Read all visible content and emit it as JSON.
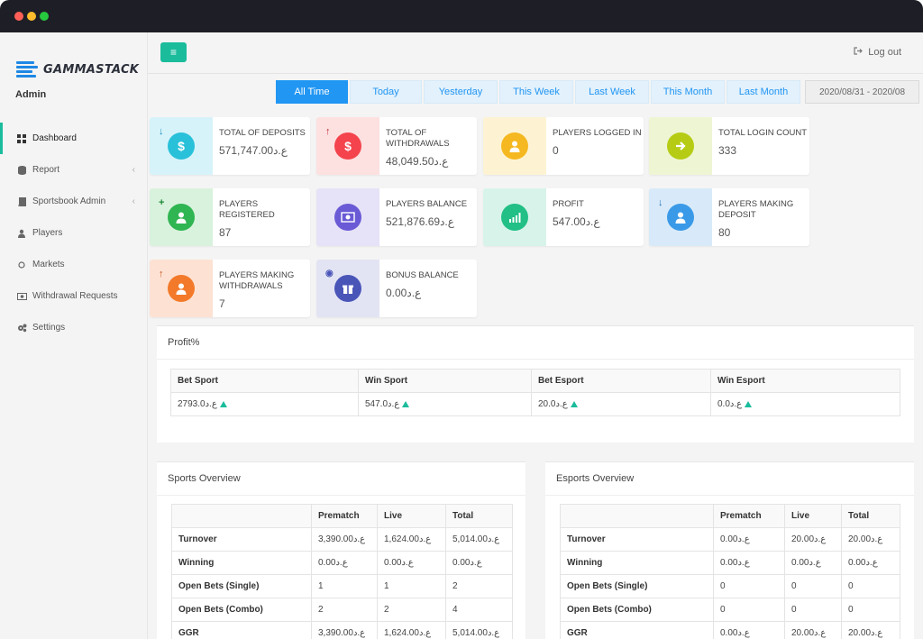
{
  "app": {
    "logo_text": "GAMMASTACK",
    "role": "Admin"
  },
  "sidebar": {
    "items": [
      {
        "label": "Dashboard",
        "icon": "grid-icon",
        "active": true,
        "has_chevron": false
      },
      {
        "label": "Report",
        "icon": "database-icon",
        "active": false,
        "has_chevron": true
      },
      {
        "label": "Sportsbook Admin",
        "icon": "book-icon",
        "active": false,
        "has_chevron": true
      },
      {
        "label": "Players",
        "icon": "users-icon",
        "active": false,
        "has_chevron": false
      },
      {
        "label": "Markets",
        "icon": "circle-icon",
        "active": false,
        "has_chevron": false
      },
      {
        "label": "Withdrawal Requests",
        "icon": "money-icon",
        "active": false,
        "has_chevron": false
      },
      {
        "label": "Settings",
        "icon": "cogs-icon",
        "active": false,
        "has_chevron": false
      }
    ]
  },
  "header": {
    "logout_label": "Log out"
  },
  "filters": {
    "tabs": [
      "All Time",
      "Today",
      "Yesterday",
      "This Week",
      "Last Week",
      "This Month",
      "Last Month"
    ],
    "active": "All Time",
    "date_range": "2020/08/31 - 2020/08"
  },
  "stats": [
    {
      "label": "TOTAL OF DEPOSITS",
      "value": "571,747.00ع.د",
      "icon": "dollar-deposit-icon"
    },
    {
      "label": "TOTAL OF WITHDRAWALS",
      "value": "48,049.50ع.د",
      "icon": "dollar-withdraw-icon"
    },
    {
      "label": "PLAYERS LOGGED IN",
      "value": "0",
      "icon": "user-icon"
    },
    {
      "label": "TOTAL LOGIN COUNT",
      "value": "333",
      "icon": "arrow-right-icon"
    },
    {
      "label": "PLAYERS REGISTERED",
      "value": "87",
      "icon": "user-add-icon"
    },
    {
      "label": "PLAYERS BALANCE",
      "value": "521,876.69ع.د",
      "icon": "money-icon"
    },
    {
      "label": "PROFIT",
      "value": "547.00ع.د",
      "icon": "bar-chart-icon"
    },
    {
      "label": "PLAYERS MAKING DEPOSIT",
      "value": "80",
      "icon": "user-deposit-icon"
    },
    {
      "label": "PLAYERS MAKING WITHDRAWALS",
      "value": "7",
      "icon": "user-withdraw-icon"
    },
    {
      "label": "BONUS BALANCE",
      "value": "0.00ع.د",
      "icon": "gift-icon"
    }
  ],
  "profit": {
    "title": "Profit%",
    "headers": [
      "Bet Sport",
      "Win Sport",
      "Bet Esport",
      "Win Esport"
    ],
    "values": [
      "2793.0ع.د",
      "547.0ع.د",
      "20.0ع.د",
      "0.0ع.د"
    ]
  },
  "sports_overview": {
    "title": "Sports Overview",
    "headers": [
      "",
      "Prematch",
      "Live",
      "Total"
    ],
    "rows": [
      [
        "Turnover",
        "3,390.00ع.د",
        "1,624.00ع.د",
        "5,014.00ع.د"
      ],
      [
        "Winning",
        "0.00ع.د",
        "0.00ع.د",
        "0.00ع.د"
      ],
      [
        "Open Bets (Single)",
        "1",
        "1",
        "2"
      ],
      [
        "Open Bets (Combo)",
        "2",
        "2",
        "4"
      ],
      [
        "GGR",
        "3,390.00ع.د",
        "1,624.00ع.د",
        "5,014.00ع.د"
      ]
    ]
  },
  "esports_overview": {
    "title": "Esports Overview",
    "headers": [
      "",
      "Prematch",
      "Live",
      "Total"
    ],
    "rows": [
      [
        "Turnover",
        "0.00ع.د",
        "20.00ع.د",
        "20.00ع.د"
      ],
      [
        "Winning",
        "0.00ع.د",
        "0.00ع.د",
        "0.00ع.د"
      ],
      [
        "Open Bets (Single)",
        "0",
        "0",
        "0"
      ],
      [
        "Open Bets (Combo)",
        "0",
        "0",
        "0"
      ],
      [
        "GGR",
        "0.00ع.د",
        "20.00ع.د",
        "20.00ع.د"
      ]
    ]
  },
  "colors": {
    "accent": "#1abc9c",
    "primary": "#2196f3",
    "up": "#1abc9c"
  }
}
